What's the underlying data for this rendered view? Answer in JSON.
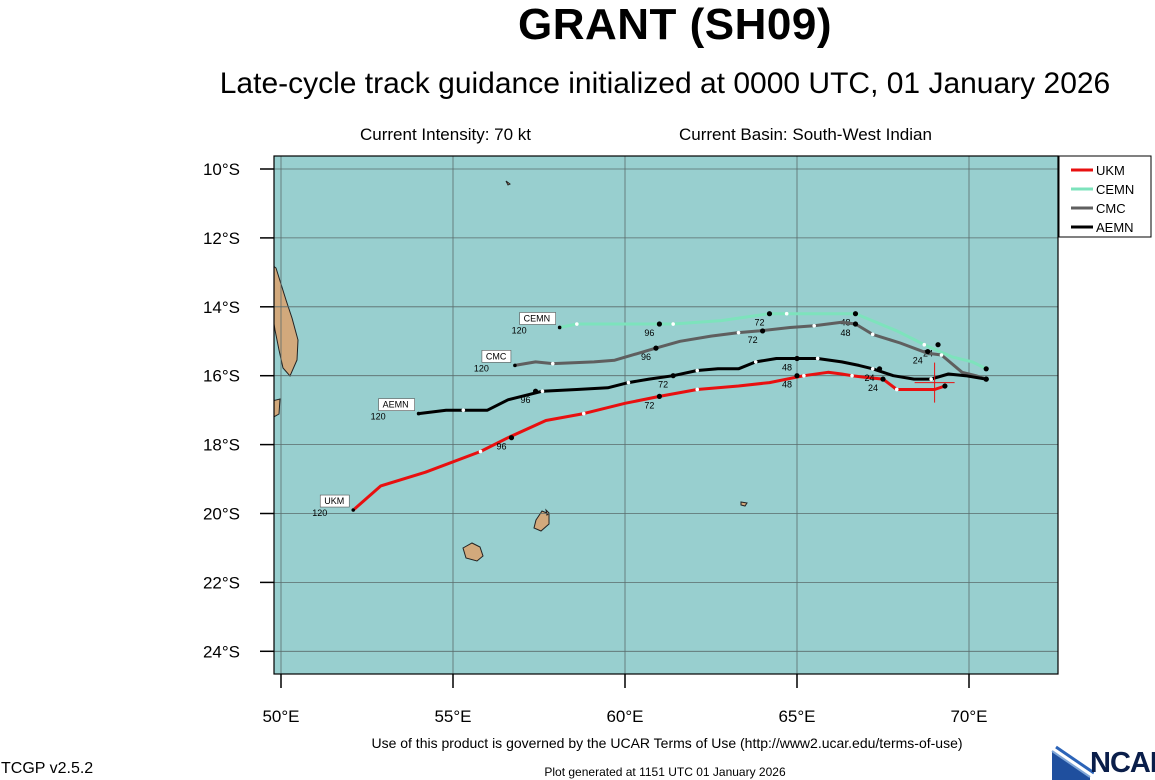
{
  "header": {
    "title": "GRANT (SH09)",
    "subtitle": "Late-cycle track guidance initialized at 0000 UTC, 01 January 2026",
    "intensity": "Current Intensity: 70 kt",
    "basin": "Current Basin: South-West Indian"
  },
  "footer": {
    "terms": "Use of this product is governed by the UCAR Terms of Use (http://www2.ucar.edu/terms-of-use)",
    "version": "TCGP v2.5.2",
    "generated": "Plot generated at 1151 UTC   01 January 2026",
    "logo_text": "NCAR"
  },
  "map": {
    "ocean_color": "#98cfcf",
    "land_color": "#d2a97c",
    "lon_ticks": [
      {
        "value": 50,
        "label": "50°E"
      },
      {
        "value": 55,
        "label": "55°E"
      },
      {
        "value": 60,
        "label": "60°E"
      },
      {
        "value": 65,
        "label": "65°E"
      },
      {
        "value": 70,
        "label": "70°E"
      }
    ],
    "lat_ticks": [
      {
        "value": -10,
        "label": "10°S"
      },
      {
        "value": -12,
        "label": "12°S"
      },
      {
        "value": -14,
        "label": "14°S"
      },
      {
        "value": -16,
        "label": "16°S"
      },
      {
        "value": -18,
        "label": "18°S"
      },
      {
        "value": -20,
        "label": "20°S"
      },
      {
        "value": -22,
        "label": "22°S"
      },
      {
        "value": -24,
        "label": "24°S"
      }
    ],
    "current_position": {
      "lon": 69.0,
      "lat": -16.2
    },
    "legend_icon": "line-swatch"
  },
  "tracks": [
    {
      "name": "UKM",
      "color": "#e81010",
      "points": [
        [
          69.3,
          -16.3
        ],
        [
          69.0,
          -16.4
        ],
        [
          68.4,
          -16.4
        ],
        [
          67.9,
          -16.4
        ],
        [
          67.5,
          -16.1
        ],
        [
          67.0,
          -16.05
        ],
        [
          66.6,
          -16.0
        ],
        [
          66.3,
          -15.95
        ],
        [
          65.9,
          -15.9
        ],
        [
          65.2,
          -16.0
        ],
        [
          64.2,
          -16.2
        ],
        [
          63.3,
          -16.3
        ],
        [
          62.1,
          -16.4
        ],
        [
          61.0,
          -16.6
        ],
        [
          60.0,
          -16.8
        ],
        [
          58.8,
          -17.1
        ],
        [
          57.7,
          -17.3
        ],
        [
          56.6,
          -17.8
        ],
        [
          55.8,
          -18.2
        ],
        [
          54.2,
          -18.8
        ],
        [
          52.9,
          -19.2
        ],
        [
          52.1,
          -19.9
        ]
      ],
      "markers": [
        {
          "lon": 67.5,
          "lat": -16.1,
          "label": "24"
        },
        {
          "lon": 65.0,
          "lat": -16.0,
          "label": "48"
        },
        {
          "lon": 61.0,
          "lat": -16.6,
          "label": "72"
        },
        {
          "lon": 56.7,
          "lat": -17.8,
          "label": "96"
        }
      ],
      "end_label": "120"
    },
    {
      "name": "CEMN",
      "color": "#7de3bc",
      "points": [
        [
          70.5,
          -15.8
        ],
        [
          70.1,
          -15.6
        ],
        [
          69.5,
          -15.45
        ],
        [
          68.7,
          -15.1
        ],
        [
          67.9,
          -14.7
        ],
        [
          67.3,
          -14.45
        ],
        [
          66.7,
          -14.2
        ],
        [
          66.1,
          -14.2
        ],
        [
          65.4,
          -14.2
        ],
        [
          64.7,
          -14.2
        ],
        [
          64.2,
          -14.2
        ],
        [
          62.8,
          -14.4
        ],
        [
          61.4,
          -14.5
        ],
        [
          60.4,
          -14.5
        ],
        [
          59.8,
          -14.5
        ],
        [
          58.6,
          -14.5
        ],
        [
          58.1,
          -14.6
        ]
      ],
      "markers": [
        {
          "lon": 69.1,
          "lat": -15.1,
          "label": "24"
        },
        {
          "lon": 66.7,
          "lat": -14.2,
          "label": "48"
        },
        {
          "lon": 64.2,
          "lat": -14.2,
          "label": "72"
        },
        {
          "lon": 61.0,
          "lat": -14.5,
          "label": "96"
        }
      ],
      "end_label": "120"
    },
    {
      "name": "CMC",
      "color": "#5f5f5f",
      "points": [
        [
          70.5,
          -16.1
        ],
        [
          70.2,
          -16.0
        ],
        [
          69.8,
          -15.9
        ],
        [
          69.2,
          -15.4
        ],
        [
          68.8,
          -15.35
        ],
        [
          68.0,
          -15.05
        ],
        [
          67.2,
          -14.8
        ],
        [
          66.7,
          -14.5
        ],
        [
          66.3,
          -14.45
        ],
        [
          65.5,
          -14.55
        ],
        [
          64.8,
          -14.6
        ],
        [
          63.9,
          -14.7
        ],
        [
          63.3,
          -14.75
        ],
        [
          62.5,
          -14.85
        ],
        [
          61.6,
          -15.0
        ],
        [
          60.9,
          -15.2
        ],
        [
          59.7,
          -15.55
        ],
        [
          59.1,
          -15.6
        ],
        [
          57.9,
          -15.65
        ],
        [
          57.4,
          -15.6
        ],
        [
          56.8,
          -15.7
        ]
      ],
      "markers": [
        {
          "lon": 68.8,
          "lat": -15.3,
          "label": "24"
        },
        {
          "lon": 66.7,
          "lat": -14.5,
          "label": "48"
        },
        {
          "lon": 64.0,
          "lat": -14.7,
          "label": "72"
        },
        {
          "lon": 60.9,
          "lat": -15.2,
          "label": "96"
        }
      ],
      "end_label": "120"
    },
    {
      "name": "AEMN",
      "color": "#000000",
      "points": [
        [
          70.5,
          -16.1
        ],
        [
          69.9,
          -16.0
        ],
        [
          69.4,
          -15.95
        ],
        [
          68.9,
          -16.1
        ],
        [
          68.4,
          -16.1
        ],
        [
          67.8,
          -16.0
        ],
        [
          67.2,
          -15.8
        ],
        [
          66.8,
          -15.7
        ],
        [
          66.3,
          -15.6
        ],
        [
          65.6,
          -15.5
        ],
        [
          65.1,
          -15.5
        ],
        [
          64.4,
          -15.5
        ],
        [
          63.8,
          -15.6
        ],
        [
          63.3,
          -15.8
        ],
        [
          62.7,
          -15.8
        ],
        [
          62.1,
          -15.85
        ],
        [
          61.4,
          -16.0
        ],
        [
          60.7,
          -16.1
        ],
        [
          60.1,
          -16.2
        ],
        [
          59.5,
          -16.35
        ],
        [
          58.6,
          -16.4
        ],
        [
          57.6,
          -16.45
        ],
        [
          56.6,
          -16.7
        ],
        [
          56.0,
          -17.0
        ],
        [
          55.3,
          -17.0
        ],
        [
          54.8,
          -17.0
        ],
        [
          54.0,
          -17.1
        ]
      ],
      "markers": [
        {
          "lon": 67.4,
          "lat": -15.8,
          "label": "24"
        },
        {
          "lon": 65.0,
          "lat": -15.5,
          "label": "48"
        },
        {
          "lon": 61.4,
          "lat": -16.0,
          "label": "72"
        },
        {
          "lon": 57.4,
          "lat": -16.45,
          "label": "96"
        }
      ],
      "end_label": "120"
    }
  ]
}
